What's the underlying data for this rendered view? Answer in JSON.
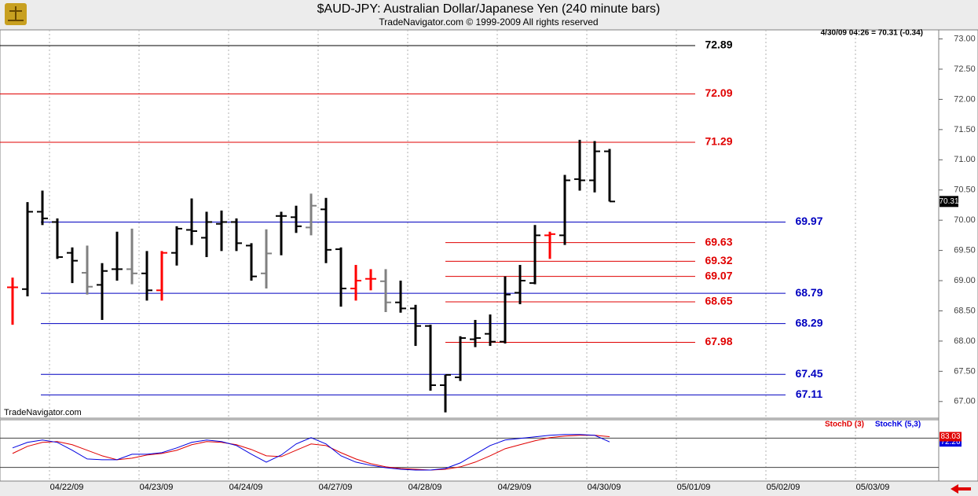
{
  "chart_data": [
    {
      "type": "ohlc",
      "title": "$AUD-JPY:  Australian Dollar/Japanese Yen  (240 minute bars)",
      "subtitle": "TradeNavigator.com © 1999-2009 All rights reserved",
      "info": "4/30/09 04:26 = 70.31 (-0.34)",
      "watermark": "TradeNavigator.com",
      "open": [
        68.89,
        68.86,
        70.14,
        69.97,
        69.46,
        69.13,
        68.93,
        69.19,
        69.19,
        69.12,
        68.84,
        69.46,
        69.84,
        69.71,
        69.94,
        69.97,
        69.58,
        69.12,
        70.07,
        70.05,
        69.88,
        70.18,
        69.52,
        68.87,
        69.03,
        68.99,
        68.64,
        68.54,
        68.25,
        67.27,
        67.4,
        68.03,
        68.12,
        67.99,
        68.8,
        68.96,
        69.75,
        69.75,
        70.68,
        70.66,
        71.14
      ],
      "high": [
        69.05,
        70.3,
        70.49,
        70.03,
        69.55,
        69.58,
        69.29,
        69.81,
        69.86,
        69.49,
        69.49,
        69.9,
        70.36,
        70.14,
        70.16,
        70.03,
        69.62,
        69.85,
        70.14,
        70.24,
        70.44,
        70.37,
        69.55,
        69.26,
        69.19,
        69.19,
        69.0,
        68.6,
        68.27,
        67.44,
        68.08,
        68.35,
        68.44,
        69.07,
        69.26,
        69.92,
        69.81,
        70.75,
        71.33,
        71.31,
        71.18
      ],
      "low": [
        68.27,
        68.74,
        69.92,
        69.36,
        68.96,
        68.77,
        68.35,
        69.0,
        68.94,
        68.67,
        68.67,
        69.25,
        69.59,
        69.39,
        69.49,
        69.49,
        69.0,
        68.87,
        69.42,
        69.79,
        69.75,
        69.29,
        68.57,
        68.67,
        68.84,
        68.48,
        68.47,
        67.92,
        67.18,
        66.82,
        67.34,
        67.9,
        67.92,
        67.96,
        68.61,
        68.94,
        69.36,
        69.59,
        70.49,
        70.46,
        70.31
      ],
      "close": [
        68.89,
        70.14,
        70.03,
        69.39,
        69.33,
        68.9,
        69.16,
        69.19,
        69.12,
        68.84,
        69.46,
        69.86,
        69.82,
        69.97,
        69.97,
        69.62,
        69.07,
        69.45,
        70.07,
        69.9,
        70.24,
        69.51,
        68.87,
        69.0,
        69.03,
        68.64,
        68.54,
        68.25,
        67.27,
        67.44,
        68.05,
        68.05,
        67.99,
        68.77,
        69.0,
        69.75,
        69.77,
        70.66,
        70.66,
        71.14,
        70.31
      ],
      "colors": [
        "#ff0000",
        "#000000",
        "#000000",
        "#000000",
        "#000000",
        "#808080",
        "#000000",
        "#000000",
        "#808080",
        "#000000",
        "#ff0000",
        "#000000",
        "#000000",
        "#000000",
        "#000000",
        "#000000",
        "#000000",
        "#808080",
        "#000000",
        "#000000",
        "#808080",
        "#000000",
        "#000000",
        "#ff0000",
        "#ff0000",
        "#808080",
        "#000000",
        "#000000",
        "#000000",
        "#000000",
        "#000000",
        "#000000",
        "#000000",
        "#000000",
        "#000000",
        "#000000",
        "#ff0000",
        "#000000",
        "#000000",
        "#000000",
        "#000000"
      ],
      "ylim": [
        66.75,
        73.15
      ],
      "yticks": [
        {
          "value": 67,
          "label": "67.00"
        },
        {
          "value": 67.5,
          "label": "67.50"
        },
        {
          "value": 68,
          "label": "68.00"
        },
        {
          "value": 68.5,
          "label": "68.50"
        },
        {
          "value": 69,
          "label": "69.00"
        },
        {
          "value": 69.5,
          "label": "69.50"
        },
        {
          "value": 70,
          "label": "70.00"
        },
        {
          "value": 70.5,
          "label": "70.50"
        },
        {
          "value": 71,
          "label": "71.00"
        },
        {
          "value": 71.5,
          "label": "71.50"
        },
        {
          "value": 72,
          "label": "72.00"
        },
        {
          "value": 72.5,
          "label": "72.50"
        },
        {
          "value": 73,
          "label": "73.00"
        }
      ],
      "levels": [
        {
          "value": 72.89,
          "color": "#000000"
        },
        {
          "value": 72.09,
          "color": "#e00000"
        },
        {
          "value": 71.29,
          "color": "#e00000"
        },
        {
          "value": 69.97,
          "color": "#0000c0"
        },
        {
          "value": 69.63,
          "color": "#e00000"
        },
        {
          "value": 69.32,
          "color": "#e00000"
        },
        {
          "value": 69.07,
          "color": "#e00000"
        },
        {
          "value": 68.79,
          "color": "#0000c0"
        },
        {
          "value": 68.65,
          "color": "#e00000"
        },
        {
          "value": 68.29,
          "color": "#0000c0"
        },
        {
          "value": 67.98,
          "color": "#e00000"
        },
        {
          "value": 67.45,
          "color": "#0000c0"
        },
        {
          "value": 67.11,
          "color": "#0000c0"
        }
      ],
      "xticks": [
        "04/22/09",
        "04/23/09",
        "04/24/09",
        "04/27/09",
        "04/28/09",
        "04/29/09",
        "04/30/09",
        "05/01/09",
        "05/02/09",
        "05/03/09"
      ]
    },
    {
      "type": "line",
      "ylim": [
        0,
        100
      ],
      "levels": [
        80,
        20
      ],
      "series": [
        {
          "name": "StochD (3)",
          "color": "#e00000",
          "values": [
            48.6,
            63.2,
            71.3,
            72.9,
            66.5,
            55.1,
            43.8,
            35.7,
            38.9,
            45.4,
            48.6,
            55.1,
            66.5,
            72.9,
            71.3,
            66.5,
            56.7,
            43.8,
            42.1,
            55.1,
            68.1,
            64.8,
            50.2,
            37.3,
            27.6,
            21.1,
            17.8,
            16.2,
            14.6,
            16.2,
            21.1,
            30.8,
            43.8,
            58.3,
            66.5,
            74.6,
            81.0,
            84.3,
            85.9,
            85.9,
            83.03
          ]
        },
        {
          "name": "StochK (5,3)",
          "color": "#0000e0",
          "values": [
            60.0,
            71.3,
            76.2,
            71.3,
            55.1,
            37.3,
            35.7,
            35.7,
            47.0,
            47.0,
            50.2,
            60.0,
            71.3,
            76.2,
            72.9,
            64.8,
            47.0,
            30.8,
            45.4,
            68.1,
            81.0,
            68.1,
            43.8,
            30.8,
            24.3,
            19.4,
            16.2,
            14.6,
            14.6,
            17.8,
            29.2,
            47.0,
            64.8,
            76.2,
            79.4,
            82.7,
            85.9,
            87.5,
            87.5,
            85.9,
            72.26
          ]
        }
      ]
    }
  ]
}
